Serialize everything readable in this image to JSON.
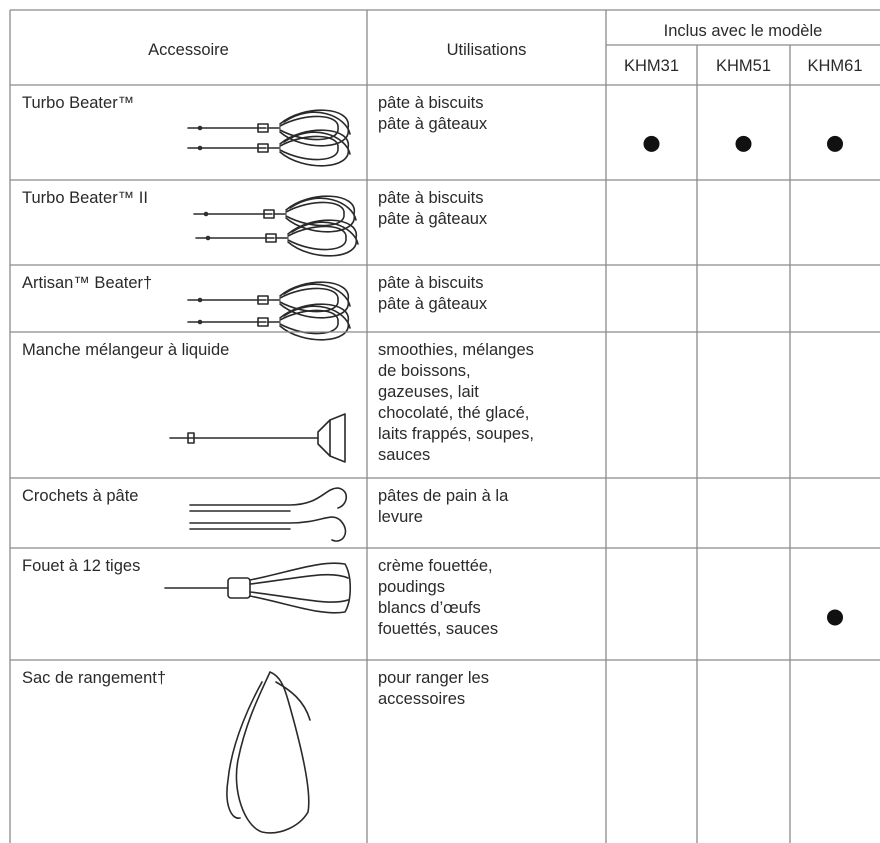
{
  "header": {
    "accessory": "Accessoire",
    "uses": "Utilisations",
    "included": "Inclus avec le modèle",
    "models": [
      "KHM31",
      "KHM51",
      "KHM61"
    ]
  },
  "rows": [
    {
      "accessory": "Turbo Beater™",
      "uses": [
        "pâte à biscuits",
        "pâte à gâteaux"
      ],
      "included": [
        true,
        true,
        true
      ]
    },
    {
      "accessory": "Turbo Beater™ II",
      "uses": [
        "pâte à biscuits",
        "pâte à gâteaux"
      ],
      "included": [
        false,
        false,
        false
      ]
    },
    {
      "accessory": "Artisan™ Beater†",
      "uses": [
        "pâte à biscuits",
        "pâte à gâteaux"
      ],
      "included": [
        false,
        false,
        false
      ]
    },
    {
      "accessory": "Manche mélangeur à liquide",
      "uses": [
        "smoothies, mélanges",
        "de boissons,",
        "gazeuses, lait",
        "chocolaté, thé glacé,",
        "laits frappés, soupes,",
        "sauces"
      ],
      "included": [
        false,
        false,
        false
      ]
    },
    {
      "accessory": "Crochets à pâte",
      "uses": [
        "pâtes de pain à la",
        "levure"
      ],
      "included": [
        false,
        false,
        false
      ]
    },
    {
      "accessory": "Fouet à 12 tiges",
      "uses": [
        "crème fouettée,",
        "poudings",
        "blancs d’œufs",
        "fouettés, sauces"
      ],
      "included": [
        false,
        false,
        true
      ]
    },
    {
      "accessory": "Sac de rangement†",
      "uses": [
        "pour ranger les",
        "accessoires"
      ],
      "included": [
        false,
        false,
        false
      ]
    }
  ]
}
